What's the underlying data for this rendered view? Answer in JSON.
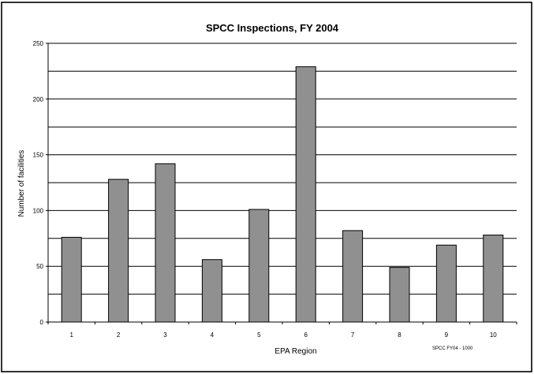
{
  "chart_data": {
    "type": "bar",
    "title": "SPCC Inspections, FY 2004",
    "xlabel": "EPA Region",
    "ylabel": "Number of facilities",
    "categories": [
      "1",
      "2",
      "3",
      "4",
      "5",
      "6",
      "7",
      "8",
      "9",
      "10"
    ],
    "values": [
      76,
      128,
      142,
      56,
      101,
      229,
      82,
      49,
      69,
      78
    ],
    "ylim": [
      0,
      250
    ],
    "yticks": [
      "0",
      "50",
      "100",
      "150",
      "200",
      "250"
    ],
    "grid": true,
    "legend": "none",
    "bar_color": "#909090",
    "footnote": "SPCC FY04 - 1000"
  }
}
